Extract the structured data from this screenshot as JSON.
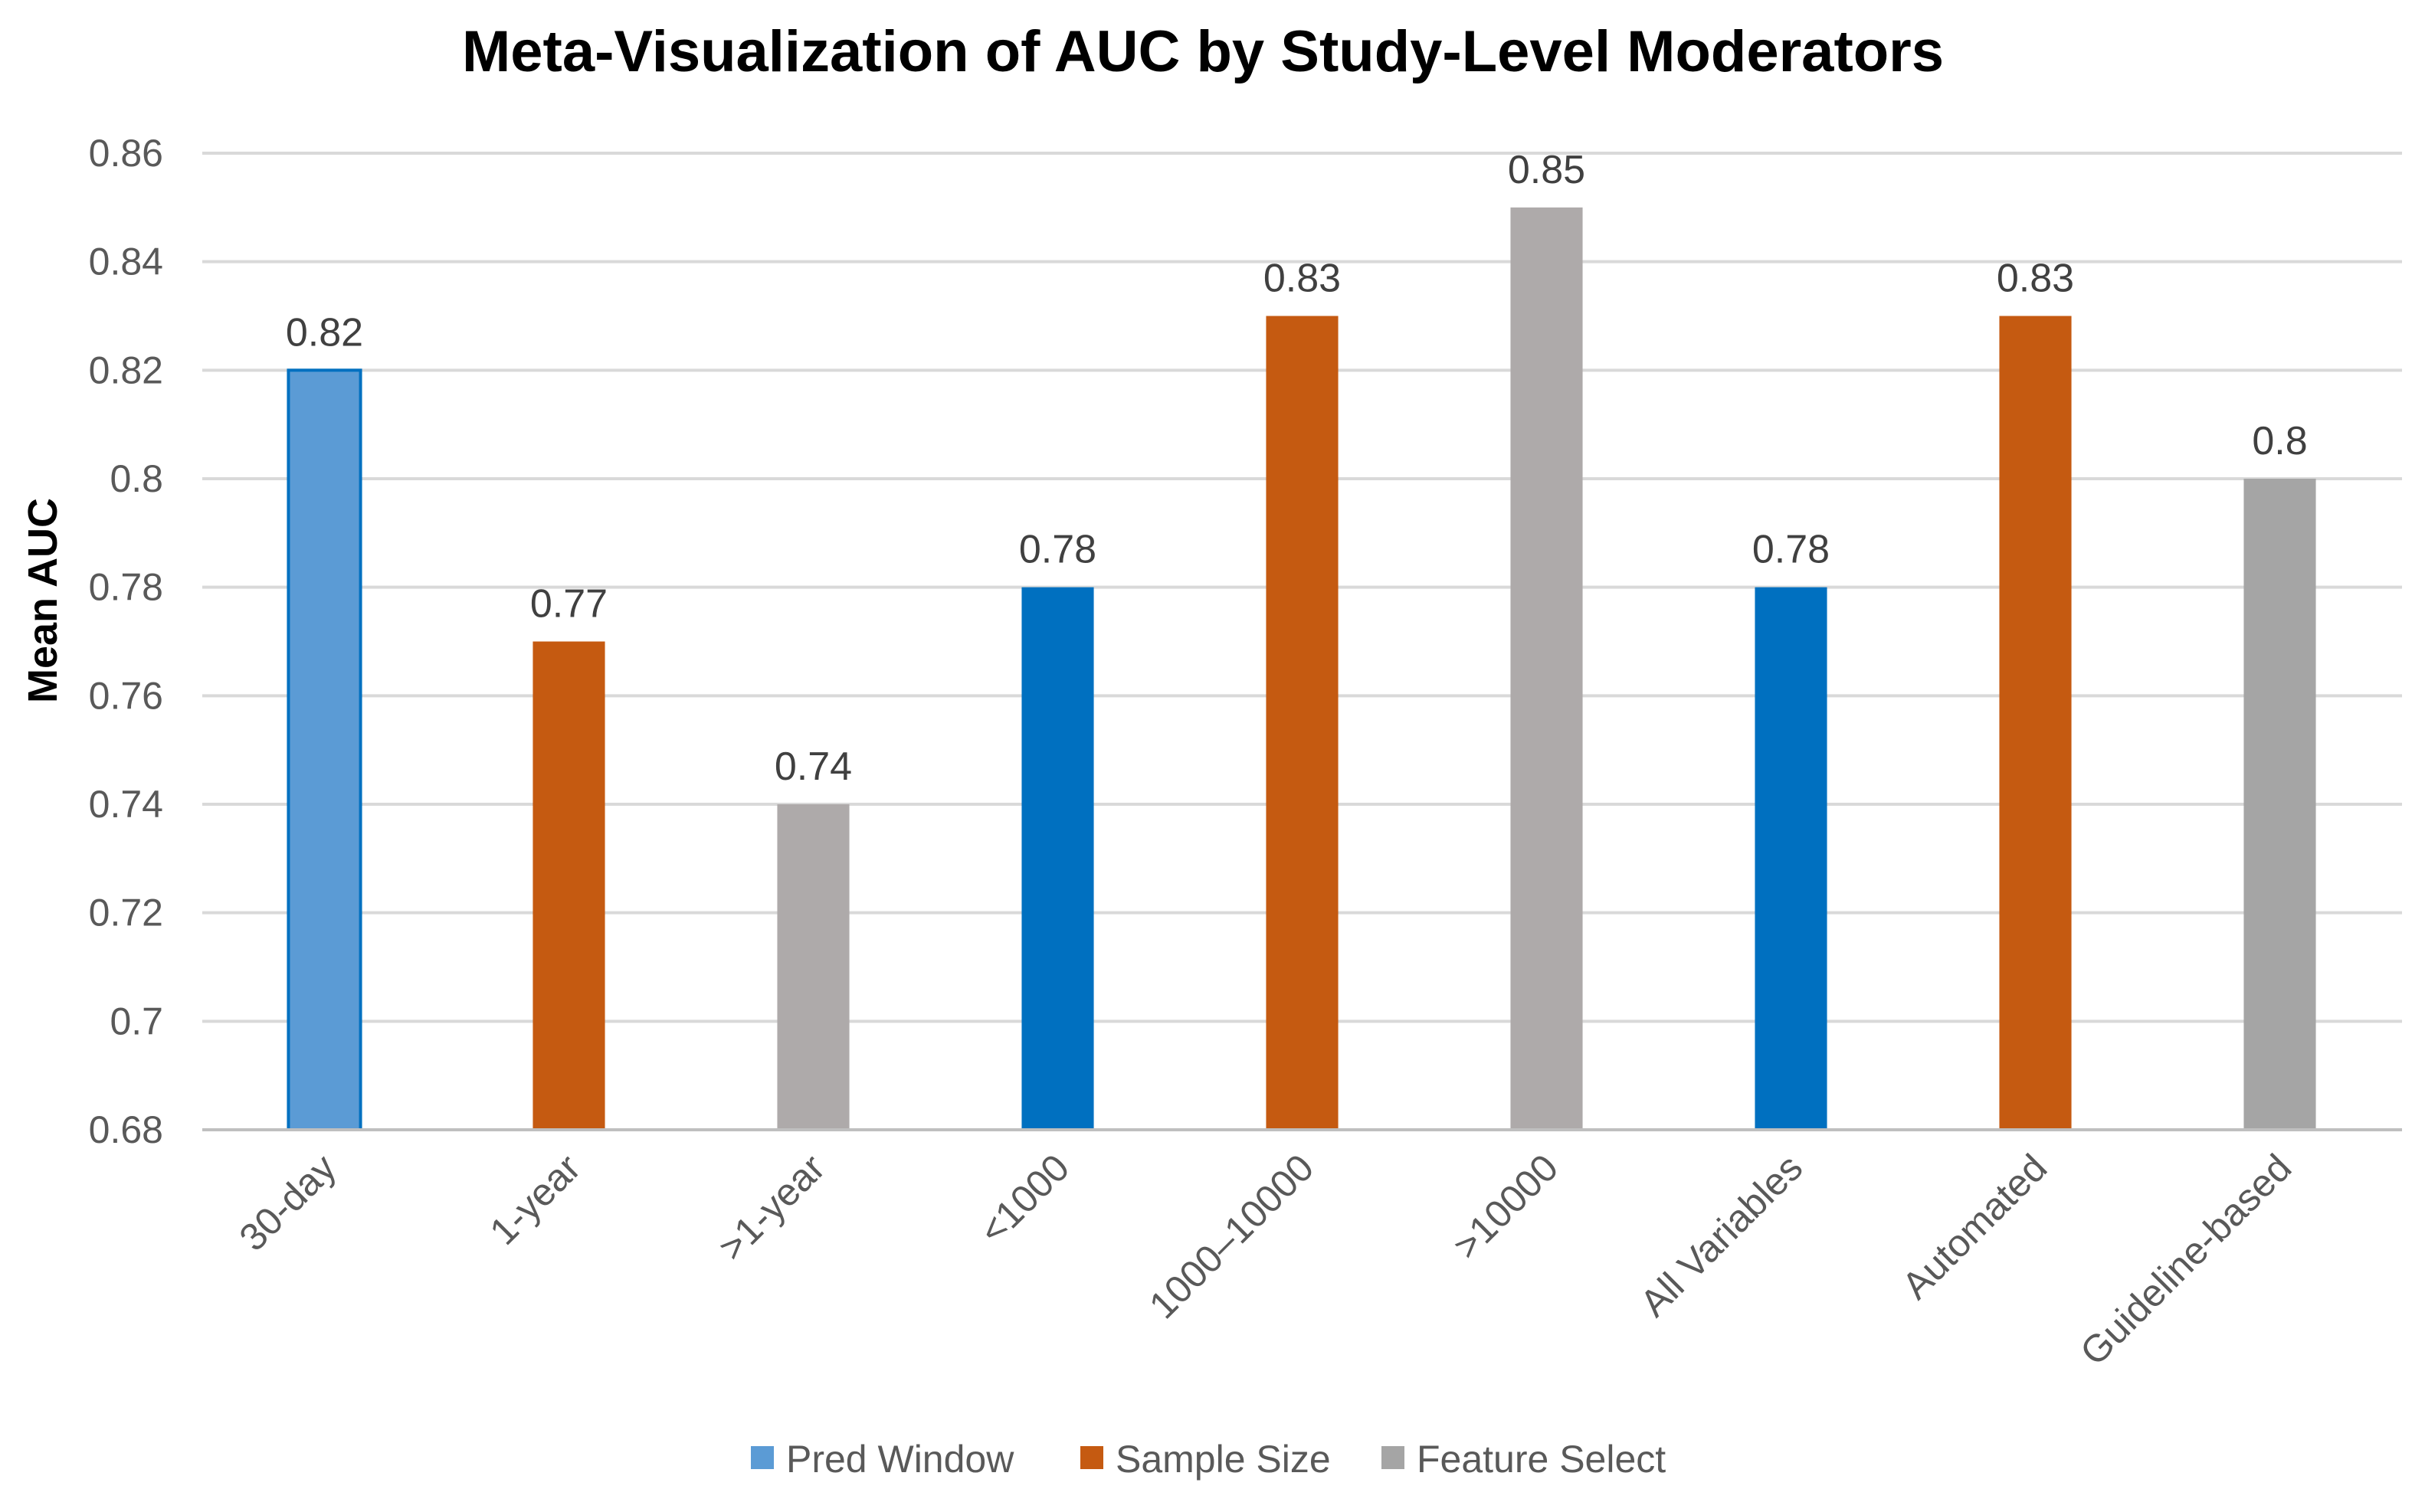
{
  "chart_data": {
    "type": "bar",
    "title": "Meta-Visualization of AUC by Study-Level Moderators",
    "xlabel": "",
    "ylabel": "Mean AUC",
    "ylim": [
      0.68,
      0.86
    ],
    "ytick_labels": [
      "0.68",
      "0.7",
      "0.72",
      "0.74",
      "0.76",
      "0.78",
      "0.8",
      "0.82",
      "0.84",
      "0.86"
    ],
    "grid": true,
    "legend_position": "bottom",
    "categories": [
      "30-day",
      "1-year",
      ">1-year",
      "<1000",
      "1000–10000",
      ">10000",
      "All Variables",
      "Automated",
      "Guideline-based"
    ],
    "series": [
      {
        "name": "Pred Window",
        "color": "#0070C0"
      },
      {
        "name": "Sample Size",
        "color": "#C55A11"
      },
      {
        "name": "Feature Select",
        "color": "#A5A5A5"
      }
    ],
    "bars": [
      {
        "category": "30-day",
        "series": "Pred Window",
        "value": 0.82,
        "label": "0.82",
        "color": "#5B9BD5",
        "outline": "#0070C0"
      },
      {
        "category": "1-year",
        "series": "Sample Size",
        "value": 0.77,
        "label": "0.77",
        "color": "#C55A11"
      },
      {
        "category": ">1-year",
        "series": "Feature Select",
        "value": 0.74,
        "label": "0.74",
        "color": "#AEAAAA"
      },
      {
        "category": "<1000",
        "series": "Pred Window",
        "value": 0.78,
        "label": "0.78",
        "color": "#0070C0"
      },
      {
        "category": "1000–10000",
        "series": "Sample Size",
        "value": 0.83,
        "label": "0.83",
        "color": "#C55A11"
      },
      {
        "category": ">10000",
        "series": "Feature Select",
        "value": 0.85,
        "label": "0.85",
        "color": "#AEAAAA"
      },
      {
        "category": "All Variables",
        "series": "Pred Window",
        "value": 0.78,
        "label": "0.78",
        "color": "#0070C0"
      },
      {
        "category": "Automated",
        "series": "Sample Size",
        "value": 0.83,
        "label": "0.83",
        "color": "#C55A11"
      },
      {
        "category": "Guideline-based",
        "series": "Feature Select",
        "value": 0.8,
        "label": "0.8",
        "color": "#A5A5A5"
      }
    ],
    "legend": [
      {
        "label": "Pred Window",
        "color": "#5B9BD5"
      },
      {
        "label": "Sample Size",
        "color": "#C55A11"
      },
      {
        "label": "Feature Select",
        "color": "#A5A5A5"
      }
    ]
  }
}
